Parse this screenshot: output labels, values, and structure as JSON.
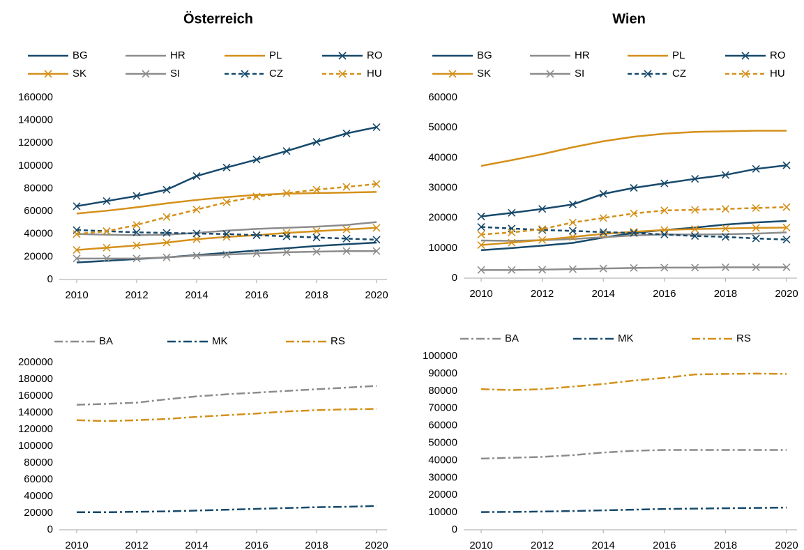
{
  "chart_data": [
    {
      "type": "line",
      "title": "Österreich",
      "x": [
        2010,
        2011,
        2012,
        2013,
        2014,
        2015,
        2016,
        2017,
        2018,
        2019,
        2020
      ],
      "xlim": [
        2010,
        2020
      ],
      "xticks": [
        2010,
        2012,
        2014,
        2016,
        2018,
        2020
      ],
      "ylim": [
        0,
        160000
      ],
      "yticks": [
        0,
        20000,
        40000,
        60000,
        80000,
        100000,
        120000,
        140000,
        160000
      ],
      "grid": false,
      "series": [
        {
          "name": "BG",
          "color": "#17496b",
          "dash": "solid",
          "marker": "none",
          "values": [
            15000,
            16500,
            18000,
            19500,
            21500,
            23500,
            25500,
            27500,
            29500,
            31000,
            32500
          ]
        },
        {
          "name": "HR",
          "color": "#8c8c8c",
          "dash": "solid",
          "marker": "none",
          "values": [
            40000,
            39500,
            39000,
            39500,
            41000,
            43000,
            44500,
            45500,
            46500,
            48000,
            50500
          ]
        },
        {
          "name": "PL",
          "color": "#d4901a",
          "dash": "solid",
          "marker": "none",
          "values": [
            58000,
            60500,
            63500,
            67000,
            70000,
            72500,
            74500,
            75500,
            76000,
            76500,
            77000
          ]
        },
        {
          "name": "RO",
          "color": "#17496b",
          "dash": "solid",
          "marker": "x",
          "values": [
            64500,
            69000,
            73500,
            79000,
            91000,
            98500,
            105500,
            113000,
            121000,
            128500,
            134000
          ]
        },
        {
          "name": "SK",
          "color": "#d4901a",
          "dash": "solid",
          "marker": "x",
          "values": [
            26000,
            28000,
            30000,
            32500,
            35500,
            37500,
            39000,
            41000,
            42500,
            44000,
            45500
          ]
        },
        {
          "name": "SI",
          "color": "#8c8c8c",
          "dash": "solid",
          "marker": "x",
          "values": [
            18500,
            18500,
            18500,
            19500,
            21000,
            22000,
            23000,
            24000,
            24500,
            25000,
            25000
          ]
        },
        {
          "name": "CZ",
          "color": "#17496b",
          "dash": "dashed",
          "marker": "x",
          "values": [
            43500,
            42500,
            41500,
            41000,
            40500,
            40000,
            39000,
            38000,
            37000,
            36000,
            35000
          ]
        },
        {
          "name": "HU",
          "color": "#d4901a",
          "dash": "dashed",
          "marker": "x",
          "values": [
            40000,
            42500,
            48000,
            55000,
            61500,
            68000,
            73000,
            76000,
            79000,
            81500,
            84000
          ]
        }
      ]
    },
    {
      "type": "line",
      "title": "Wien",
      "x": [
        2010,
        2011,
        2012,
        2013,
        2014,
        2015,
        2016,
        2017,
        2018,
        2019,
        2020
      ],
      "xlim": [
        2010,
        2020
      ],
      "xticks": [
        2010,
        2012,
        2014,
        2016,
        2018,
        2020
      ],
      "ylim": [
        0,
        60000
      ],
      "yticks": [
        0,
        10000,
        20000,
        30000,
        40000,
        50000,
        60000
      ],
      "grid": false,
      "series": [
        {
          "name": "BG",
          "color": "#17496b",
          "dash": "solid",
          "marker": "none",
          "values": [
            9300,
            10000,
            10800,
            11700,
            13500,
            15000,
            16000,
            16800,
            17800,
            18500,
            19000
          ]
        },
        {
          "name": "HR",
          "color": "#8c8c8c",
          "dash": "solid",
          "marker": "none",
          "values": [
            12500,
            12400,
            12600,
            13000,
            13600,
            14200,
            14500,
            14500,
            14600,
            14800,
            15200
          ]
        },
        {
          "name": "PL",
          "color": "#d4901a",
          "dash": "solid",
          "marker": "none",
          "values": [
            37300,
            39200,
            41200,
            43500,
            45500,
            47000,
            48000,
            48600,
            48800,
            49000,
            49000
          ]
        },
        {
          "name": "RO",
          "color": "#17496b",
          "dash": "solid",
          "marker": "x",
          "values": [
            20500,
            21700,
            23000,
            24500,
            28000,
            30000,
            31500,
            33000,
            34300,
            36300,
            37500
          ]
        },
        {
          "name": "SK",
          "color": "#d4901a",
          "dash": "solid",
          "marker": "x",
          "values": [
            11000,
            11800,
            12700,
            13700,
            14700,
            15400,
            16000,
            16300,
            16500,
            16700,
            16800
          ]
        },
        {
          "name": "SI",
          "color": "#8c8c8c",
          "dash": "solid",
          "marker": "x",
          "values": [
            2700,
            2700,
            2800,
            3000,
            3200,
            3400,
            3500,
            3500,
            3600,
            3600,
            3600
          ]
        },
        {
          "name": "CZ",
          "color": "#17496b",
          "dash": "dashed",
          "marker": "x",
          "values": [
            17000,
            16500,
            16000,
            15700,
            15300,
            15000,
            14500,
            14000,
            13700,
            13200,
            12800
          ]
        },
        {
          "name": "HU",
          "color": "#d4901a",
          "dash": "dashed",
          "marker": "x",
          "values": [
            14500,
            15200,
            16300,
            18500,
            20000,
            21500,
            22500,
            22700,
            23000,
            23300,
            23600
          ]
        }
      ]
    },
    {
      "type": "line",
      "x": [
        2010,
        2011,
        2012,
        2013,
        2014,
        2015,
        2016,
        2017,
        2018,
        2019,
        2020
      ],
      "xlim": [
        2010,
        2020
      ],
      "xticks": [
        2010,
        2012,
        2014,
        2016,
        2018,
        2020
      ],
      "ylim": [
        0,
        200000
      ],
      "yticks": [
        0,
        20000,
        40000,
        60000,
        80000,
        100000,
        120000,
        140000,
        160000,
        180000,
        200000
      ],
      "grid": false,
      "series": [
        {
          "name": "BA",
          "color": "#8c8c8c",
          "dash": "dashdot",
          "marker": "none",
          "values": [
            149500,
            150500,
            152000,
            156000,
            159500,
            162000,
            164000,
            166000,
            168000,
            170000,
            172000
          ]
        },
        {
          "name": "MK",
          "color": "#17496b",
          "dash": "dashdot",
          "marker": "none",
          "values": [
            21000,
            21000,
            21500,
            22000,
            23000,
            24000,
            25000,
            26000,
            27000,
            27500,
            28500
          ]
        },
        {
          "name": "RS",
          "color": "#d4901a",
          "dash": "dashdot",
          "marker": "none",
          "values": [
            131000,
            130000,
            131000,
            132500,
            135000,
            137000,
            139000,
            141500,
            143000,
            144000,
            144500
          ]
        }
      ]
    },
    {
      "type": "line",
      "x": [
        2010,
        2011,
        2012,
        2013,
        2014,
        2015,
        2016,
        2017,
        2018,
        2019,
        2020
      ],
      "xlim": [
        2010,
        2020
      ],
      "xticks": [
        2010,
        2012,
        2014,
        2016,
        2018,
        2020
      ],
      "ylim": [
        0,
        100000
      ],
      "yticks": [
        0,
        10000,
        20000,
        30000,
        40000,
        50000,
        60000,
        70000,
        80000,
        90000,
        100000
      ],
      "grid": false,
      "series": [
        {
          "name": "BA",
          "color": "#8c8c8c",
          "dash": "dashdot",
          "marker": "none",
          "values": [
            41000,
            41500,
            42000,
            43000,
            44500,
            45500,
            46000,
            46000,
            46000,
            46000,
            46000
          ]
        },
        {
          "name": "MK",
          "color": "#17496b",
          "dash": "dashdot",
          "marker": "none",
          "values": [
            10200,
            10300,
            10500,
            10800,
            11200,
            11600,
            12000,
            12200,
            12400,
            12600,
            12800
          ]
        },
        {
          "name": "RS",
          "color": "#d4901a",
          "dash": "dashdot",
          "marker": "none",
          "values": [
            81000,
            80500,
            81000,
            82500,
            84000,
            86000,
            87500,
            89500,
            89800,
            90000,
            89800
          ]
        }
      ]
    }
  ]
}
